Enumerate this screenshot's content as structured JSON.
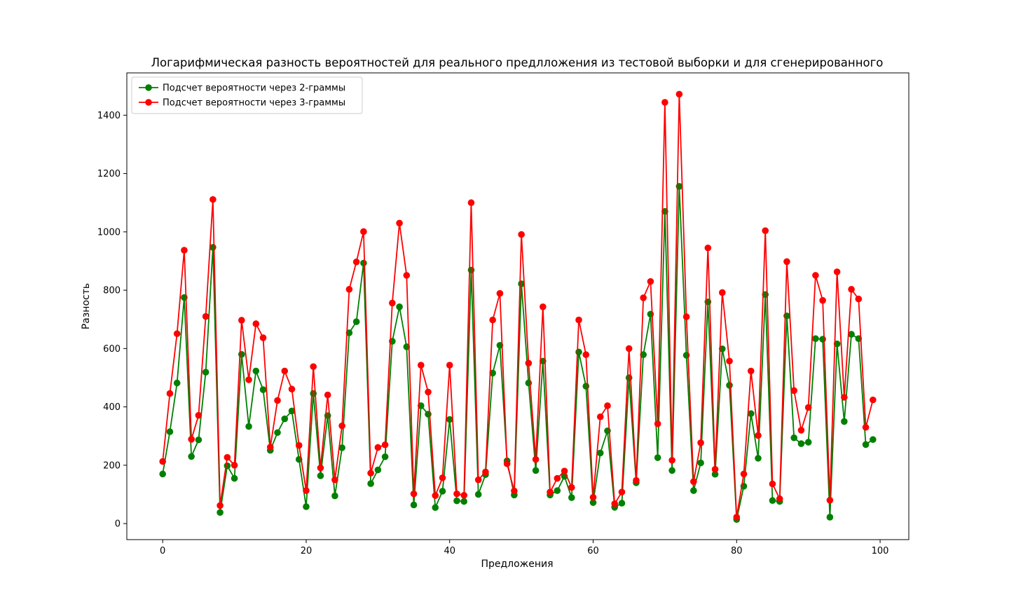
{
  "chart_data": {
    "type": "line",
    "title": "Логарифмическая разность вероятностей для реального предлложения из тестовой выборки и для сгенерированного",
    "xlabel": "Предложения",
    "ylabel": "Разность",
    "xlim": [
      -5,
      104
    ],
    "ylim": [
      -55,
      1545
    ],
    "x_ticks": [
      0,
      20,
      40,
      60,
      80,
      100
    ],
    "y_ticks": [
      0,
      200,
      400,
      600,
      800,
      1000,
      1200,
      1400
    ],
    "legend_position": "upper-left",
    "grid": false,
    "series": [
      {
        "name": "Подсчет вероятности через 2-граммы",
        "color": "#008000",
        "marker": "circle",
        "values": [
          170,
          315,
          482,
          775,
          230,
          287,
          519,
          947,
          38,
          198,
          155,
          580,
          333,
          523,
          459,
          251,
          312,
          359,
          386,
          220,
          58,
          446,
          164,
          370,
          95,
          260,
          654,
          692,
          893,
          137,
          184,
          229,
          625,
          743,
          606,
          64,
          404,
          375,
          55,
          111,
          357,
          78,
          76,
          869,
          100,
          168,
          516,
          611,
          215,
          98,
          822,
          482,
          182,
          557,
          98,
          113,
          162,
          89,
          588,
          471,
          72,
          242,
          318,
          56,
          70,
          500,
          140,
          579,
          718,
          226,
          1070,
          182,
          1156,
          577,
          113,
          208,
          760,
          169,
          599,
          474,
          14,
          128,
          377,
          224,
          785,
          79,
          76,
          712,
          294,
          274,
          279,
          634,
          632,
          22,
          616,
          350,
          649,
          634,
          271,
          288
        ]
      },
      {
        "name": "Подсчет вероятности через 3-граммы",
        "color": "#ff0000",
        "marker": "circle",
        "values": [
          213,
          446,
          651,
          937,
          289,
          371,
          710,
          1111,
          62,
          227,
          200,
          697,
          493,
          685,
          637,
          262,
          422,
          523,
          461,
          268,
          113,
          538,
          191,
          441,
          150,
          335,
          803,
          897,
          1001,
          173,
          261,
          270,
          756,
          1030,
          851,
          102,
          543,
          451,
          96,
          157,
          543,
          102,
          97,
          1100,
          150,
          177,
          698,
          789,
          205,
          112,
          991,
          550,
          220,
          743,
          108,
          155,
          180,
          124,
          698,
          579,
          90,
          366,
          404,
          68,
          108,
          600,
          148,
          774,
          830,
          342,
          1444,
          217,
          1472,
          709,
          144,
          277,
          945,
          186,
          792,
          557,
          22,
          170,
          523,
          302,
          1004,
          136,
          85,
          898,
          456,
          320,
          398,
          851,
          765,
          80,
          863,
          433,
          803,
          770,
          330,
          424
        ]
      }
    ]
  }
}
